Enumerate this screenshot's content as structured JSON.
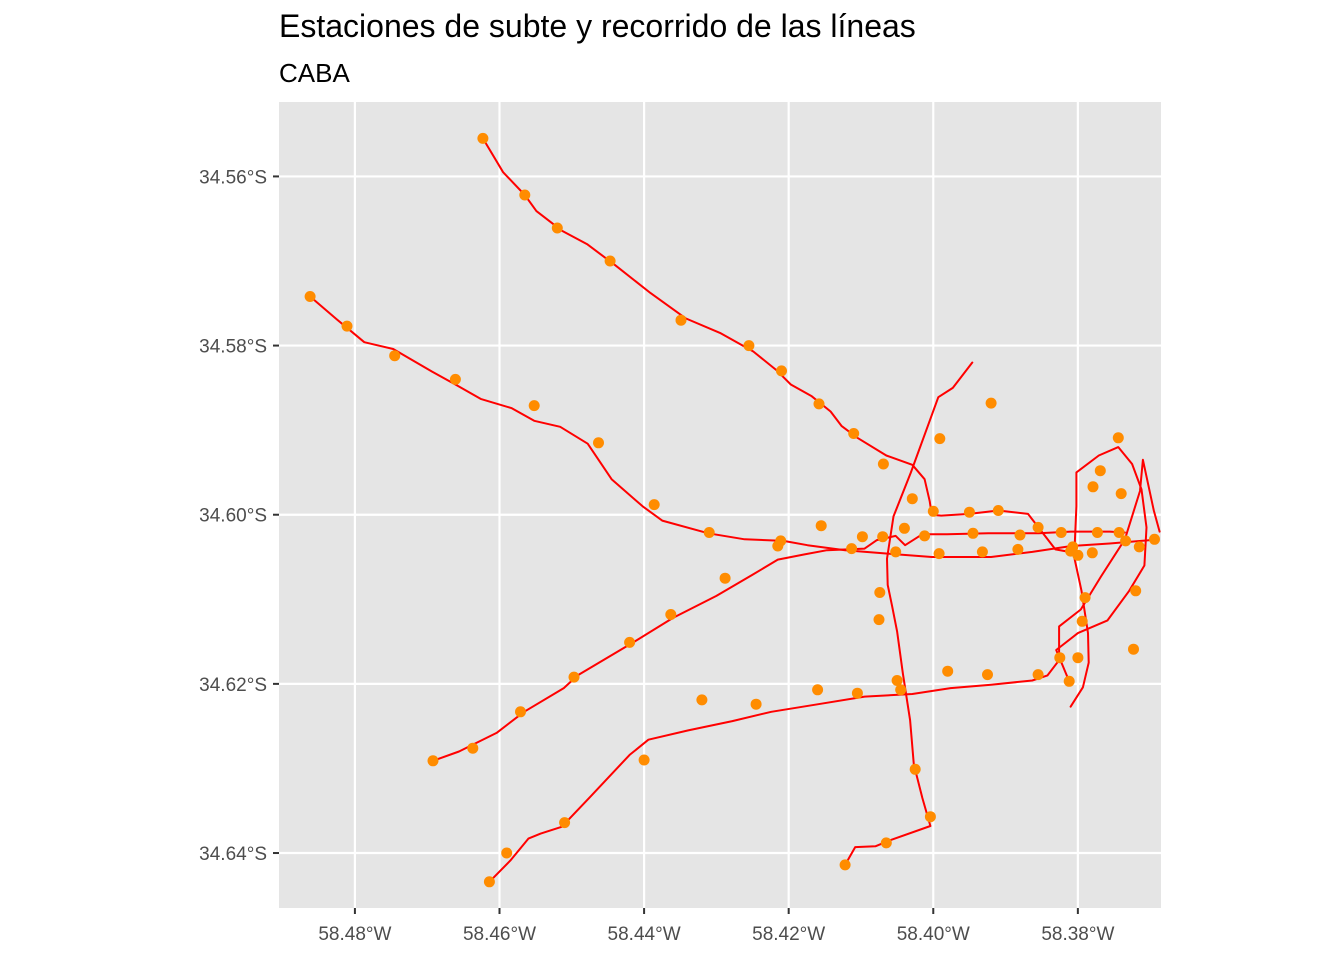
{
  "title": "Estaciones de subte y recorrido de las líneas",
  "subtitle": "CABA",
  "chart_data": {
    "type": "scatter",
    "title": "Estaciones de subte y recorrido de las líneas",
    "subtitle": "CABA",
    "xlabel": "",
    "ylabel": "",
    "xlim": [
      -58.4905,
      -58.3685
    ],
    "ylim": [
      -34.6465,
      -34.5512
    ],
    "grid": true,
    "x_ticks": [
      {
        "value": -58.48,
        "label": "58.48°W"
      },
      {
        "value": -58.46,
        "label": "58.46°W"
      },
      {
        "value": -58.44,
        "label": "58.44°W"
      },
      {
        "value": -58.42,
        "label": "58.42°W"
      },
      {
        "value": -58.4,
        "label": "58.40°W"
      },
      {
        "value": -58.38,
        "label": "58.38°W"
      }
    ],
    "y_ticks": [
      {
        "value": -34.56,
        "label": "34.56°S"
      },
      {
        "value": -34.58,
        "label": "34.58°S"
      },
      {
        "value": -34.6,
        "label": "34.60°S"
      },
      {
        "value": -34.62,
        "label": "34.62°S"
      },
      {
        "value": -34.64,
        "label": "34.64°S"
      }
    ],
    "colors": {
      "panel": "#e5e5e5",
      "grid": "#ffffff",
      "line": "#ff0000",
      "station": "#ff8c00",
      "tick_text": "#4d4d4d",
      "axis_tick": "#333333"
    },
    "series": [
      {
        "kind": "route",
        "points": [
          [
            -58.4623,
            -34.5555
          ],
          [
            -58.4595,
            -34.5595
          ],
          [
            -58.4565,
            -34.5622
          ],
          [
            -58.4549,
            -34.5641
          ],
          [
            -58.4514,
            -34.5664
          ],
          [
            -58.4479,
            -34.568
          ],
          [
            -58.444,
            -34.5705
          ],
          [
            -58.4391,
            -34.5738
          ],
          [
            -58.4342,
            -34.5768
          ],
          [
            -58.4295,
            -34.5785
          ],
          [
            -58.4249,
            -34.5807
          ],
          [
            -58.4217,
            -34.5829
          ],
          [
            -58.4197,
            -34.5846
          ],
          [
            -58.4168,
            -34.586
          ],
          [
            -58.4142,
            -34.5878
          ],
          [
            -58.4127,
            -34.5895
          ],
          [
            -58.4105,
            -34.5909
          ],
          [
            -58.4065,
            -34.593
          ],
          [
            -58.4029,
            -34.5941
          ],
          [
            -58.4012,
            -34.5958
          ],
          [
            -58.4005,
            -34.5984
          ],
          [
            -58.4002,
            -34.6
          ],
          [
            -58.3989,
            -34.6001
          ],
          [
            -58.395,
            -34.5999
          ],
          [
            -58.391,
            -34.5995
          ],
          [
            -58.3869,
            -34.5999
          ],
          [
            -58.3831,
            -34.6041
          ],
          [
            -58.3799,
            -34.6046
          ]
        ]
      },
      {
        "kind": "route",
        "points": [
          [
            -58.4862,
            -34.5742
          ],
          [
            -58.4825,
            -34.5769
          ],
          [
            -58.4811,
            -34.5779
          ],
          [
            -58.4787,
            -34.5796
          ],
          [
            -58.4747,
            -34.5804
          ],
          [
            -58.4693,
            -34.5831
          ],
          [
            -58.4661,
            -34.5846
          ],
          [
            -58.4626,
            -34.5863
          ],
          [
            -58.4583,
            -34.5874
          ],
          [
            -58.4552,
            -34.5889
          ],
          [
            -58.4516,
            -34.5896
          ],
          [
            -58.4478,
            -34.5916
          ],
          [
            -58.4445,
            -34.5958
          ],
          [
            -58.4402,
            -34.599
          ],
          [
            -58.4375,
            -34.6007
          ],
          [
            -58.4311,
            -34.6022
          ],
          [
            -58.4261,
            -34.6029
          ],
          [
            -58.4207,
            -34.6031
          ],
          [
            -58.4174,
            -34.6036
          ],
          [
            -58.4122,
            -34.6042
          ],
          [
            -58.4063,
            -34.6046
          ],
          [
            -58.4002,
            -34.605
          ],
          [
            -58.392,
            -34.605
          ],
          [
            -58.3863,
            -34.6044
          ],
          [
            -58.3809,
            -34.6037
          ],
          [
            -58.3756,
            -34.6034
          ],
          [
            -58.37,
            -34.603
          ]
        ]
      },
      {
        "kind": "route",
        "points": [
          [
            -58.4692,
            -34.6291
          ],
          [
            -58.4656,
            -34.628
          ],
          [
            -58.4604,
            -34.6258
          ],
          [
            -58.4566,
            -34.6233
          ],
          [
            -58.4511,
            -34.6205
          ],
          [
            -58.4492,
            -34.619
          ],
          [
            -58.4415,
            -34.6151
          ],
          [
            -58.436,
            -34.6122
          ],
          [
            -58.43,
            -34.6096
          ],
          [
            -58.425,
            -34.6071
          ],
          [
            -58.4215,
            -34.6053
          ],
          [
            -58.4179,
            -34.6047
          ],
          [
            -58.4147,
            -34.6042
          ],
          [
            -58.4095,
            -34.604
          ],
          [
            -58.4078,
            -34.603
          ],
          [
            -58.4052,
            -34.6025
          ],
          [
            -58.4039,
            -34.6036
          ],
          [
            -58.4015,
            -34.6023
          ],
          [
            -58.3981,
            -34.6023
          ],
          [
            -58.3924,
            -34.6022
          ],
          [
            -58.3854,
            -34.6022
          ],
          [
            -58.381,
            -34.602
          ],
          [
            -58.3756,
            -34.602
          ],
          [
            -58.3735,
            -34.6021
          ]
        ]
      },
      {
        "kind": "route",
        "points": [
          [
            -58.4614,
            -34.6434
          ],
          [
            -58.4585,
            -34.6409
          ],
          [
            -58.456,
            -34.6383
          ],
          [
            -58.4543,
            -34.6377
          ],
          [
            -58.4514,
            -34.6369
          ],
          [
            -58.4475,
            -34.6334
          ],
          [
            -58.442,
            -34.6284
          ],
          [
            -58.4394,
            -34.6266
          ],
          [
            -58.4339,
            -34.6255
          ],
          [
            -58.4278,
            -34.6244
          ],
          [
            -58.4224,
            -34.6233
          ],
          [
            -58.4159,
            -34.6224
          ],
          [
            -58.4095,
            -34.6215
          ],
          [
            -58.4029,
            -34.6212
          ],
          [
            -58.3976,
            -34.6205
          ],
          [
            -58.392,
            -34.6201
          ],
          [
            -58.3863,
            -34.6196
          ],
          [
            -58.3842,
            -34.619
          ],
          [
            -58.3826,
            -34.6172
          ],
          [
            -58.3826,
            -34.6132
          ],
          [
            -58.3796,
            -34.6112
          ],
          [
            -58.3768,
            -34.6073
          ],
          [
            -58.3735,
            -34.6029
          ],
          [
            -58.3714,
            -34.5972
          ],
          [
            -58.371,
            -34.5935
          ],
          [
            -58.3695,
            -34.5995
          ],
          [
            -58.3687,
            -34.602
          ]
        ]
      },
      {
        "kind": "route",
        "points": [
          [
            -58.4122,
            -34.6414
          ],
          [
            -58.4108,
            -34.6393
          ],
          [
            -58.408,
            -34.6392
          ],
          [
            -58.406,
            -34.6385
          ],
          [
            -58.4004,
            -34.6368
          ],
          [
            -58.4015,
            -34.6335
          ],
          [
            -58.4027,
            -34.6295
          ],
          [
            -58.4032,
            -34.6243
          ],
          [
            -58.4042,
            -34.6188
          ],
          [
            -58.405,
            -34.6138
          ],
          [
            -58.4057,
            -34.6108
          ],
          [
            -58.4063,
            -34.6083
          ],
          [
            -58.4064,
            -34.6052
          ],
          [
            -58.4055,
            -34.6002
          ],
          [
            -58.4031,
            -34.595
          ],
          [
            -58.4005,
            -34.5889
          ],
          [
            -58.3993,
            -34.5861
          ],
          [
            -58.3973,
            -34.585
          ],
          [
            -58.3946,
            -34.582
          ]
        ]
      },
      {
        "kind": "route",
        "points": [
          [
            -58.381,
            -34.6227
          ],
          [
            -58.3793,
            -34.6204
          ],
          [
            -58.3785,
            -34.6175
          ],
          [
            -58.3786,
            -34.614
          ],
          [
            -58.3795,
            -34.609
          ],
          [
            -58.3805,
            -34.605
          ],
          [
            -58.3802,
            -34.599
          ],
          [
            -58.3802,
            -34.595
          ],
          [
            -58.3771,
            -34.593
          ],
          [
            -58.3744,
            -34.592
          ],
          [
            -58.3725,
            -34.594
          ],
          [
            -58.3712,
            -34.597
          ],
          [
            -58.3705,
            -34.6015
          ],
          [
            -58.3708,
            -34.606
          ],
          [
            -58.3729,
            -34.609
          ],
          [
            -58.3759,
            -34.6125
          ],
          [
            -58.38,
            -34.614
          ],
          [
            -58.383,
            -34.616
          ],
          [
            -58.3813,
            -34.6195
          ]
        ]
      }
    ],
    "stations": [
      [
        -58.4623,
        -34.5555
      ],
      [
        -58.4565,
        -34.5622
      ],
      [
        -58.452,
        -34.5661
      ],
      [
        -58.4447,
        -34.57
      ],
      [
        -58.4349,
        -34.577
      ],
      [
        -58.4255,
        -34.58
      ],
      [
        -58.421,
        -34.583
      ],
      [
        -58.4158,
        -34.5869
      ],
      [
        -58.411,
        -34.5904
      ],
      [
        -58.4069,
        -34.594
      ],
      [
        -58.4029,
        -34.5981
      ],
      [
        -58.4,
        -34.5996
      ],
      [
        -58.395,
        -34.5997
      ],
      [
        -58.391,
        -34.5995
      ],
      [
        -58.3855,
        -34.6015
      ],
      [
        -58.38,
        -34.6048
      ],
      [
        -58.378,
        -34.6045
      ],
      [
        -58.4862,
        -34.5742
      ],
      [
        -58.4811,
        -34.5777
      ],
      [
        -58.4745,
        -34.5812
      ],
      [
        -58.4661,
        -34.584
      ],
      [
        -58.4552,
        -34.5871
      ],
      [
        -58.4463,
        -34.5915
      ],
      [
        -58.4386,
        -34.5988
      ],
      [
        -58.431,
        -34.6021
      ],
      [
        -58.4211,
        -34.6031
      ],
      [
        -58.4113,
        -34.604
      ],
      [
        -58.4052,
        -34.6044
      ],
      [
        -58.3992,
        -34.6046
      ],
      [
        -58.3932,
        -34.6044
      ],
      [
        -58.3883,
        -34.6041
      ],
      [
        -58.3807,
        -34.6038
      ],
      [
        -58.3734,
        -34.6031
      ],
      [
        -58.3694,
        -34.6029
      ],
      [
        -58.4692,
        -34.6291
      ],
      [
        -58.4637,
        -34.6276
      ],
      [
        -58.4571,
        -34.6233
      ],
      [
        -58.4497,
        -34.6192
      ],
      [
        -58.442,
        -34.6151
      ],
      [
        -58.4363,
        -34.6118
      ],
      [
        -58.4288,
        -34.6075
      ],
      [
        -58.4215,
        -34.6037
      ],
      [
        -58.4155,
        -34.6013
      ],
      [
        -58.4098,
        -34.6026
      ],
      [
        -58.407,
        -34.6026
      ],
      [
        -58.4012,
        -34.6025
      ],
      [
        -58.3945,
        -34.6022
      ],
      [
        -58.388,
        -34.6024
      ],
      [
        -58.3823,
        -34.6021
      ],
      [
        -58.3773,
        -34.6021
      ],
      [
        -58.3743,
        -34.6021
      ],
      [
        -58.4614,
        -34.6434
      ],
      [
        -58.459,
        -34.64
      ],
      [
        -58.451,
        -34.6364
      ],
      [
        -58.44,
        -34.629
      ],
      [
        -58.432,
        -34.6219
      ],
      [
        -58.4245,
        -34.6224
      ],
      [
        -58.416,
        -34.6207
      ],
      [
        -58.4105,
        -34.6211
      ],
      [
        -58.405,
        -34.6196
      ],
      [
        -58.398,
        -34.6185
      ],
      [
        -58.3925,
        -34.6189
      ],
      [
        -58.3855,
        -34.6189
      ],
      [
        -58.3825,
        -34.6169
      ],
      [
        -58.4122,
        -34.6414
      ],
      [
        -58.4065,
        -34.6388
      ],
      [
        -58.4004,
        -34.6357
      ],
      [
        -58.4025,
        -34.6301
      ],
      [
        -58.4045,
        -34.6207
      ],
      [
        -58.4075,
        -34.6124
      ],
      [
        -58.4074,
        -34.6092
      ],
      [
        -58.404,
        -34.6016
      ],
      [
        -58.3991,
        -34.591
      ],
      [
        -58.392,
        -34.5868
      ],
      [
        -58.3812,
        -34.6197
      ],
      [
        -58.38,
        -34.6169
      ],
      [
        -58.3794,
        -34.6126
      ],
      [
        -58.379,
        -34.6098
      ],
      [
        -58.381,
        -34.6043
      ],
      [
        -58.3779,
        -34.5967
      ],
      [
        -58.3769,
        -34.5948
      ],
      [
        -58.3744,
        -34.5909
      ],
      [
        -58.374,
        -34.5975
      ],
      [
        -58.3715,
        -34.6038
      ],
      [
        -58.372,
        -34.609
      ],
      [
        -58.3723,
        -34.6159
      ]
    ]
  }
}
